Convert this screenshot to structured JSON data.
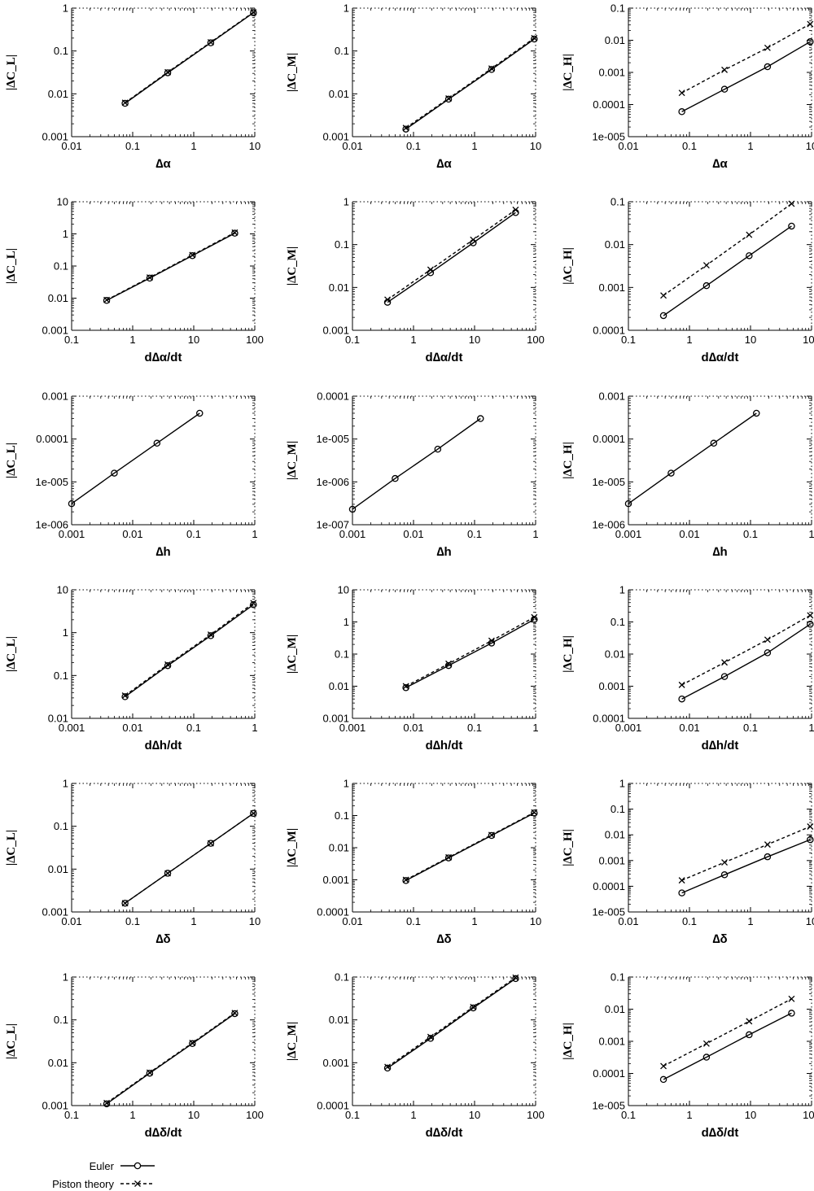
{
  "legend": {
    "euler_label": "Euler",
    "piston_label": "Piston theory"
  },
  "chart_data": [
    {
      "type": "line",
      "row": 1,
      "col": 1,
      "xlabel": "∆α",
      "ylabel": "|∆C_L|",
      "xscale": "log",
      "yscale": "log",
      "xlim": [
        0.01,
        10
      ],
      "ylim": [
        0.001,
        1
      ],
      "xticks": [
        "0.01",
        "0.1",
        "1",
        "10"
      ],
      "yticks": [
        "0.001",
        "0.01",
        "0.1",
        "1"
      ],
      "series": [
        {
          "name": "Euler",
          "x": [
            0.075,
            0.375,
            1.9,
            9.5
          ],
          "y": [
            0.006,
            0.031,
            0.155,
            0.78
          ]
        },
        {
          "name": "Piston theory",
          "x": [
            0.075,
            0.375,
            1.9,
            9.5
          ],
          "y": [
            0.0062,
            0.032,
            0.16,
            0.8
          ]
        }
      ]
    },
    {
      "type": "line",
      "row": 1,
      "col": 2,
      "xlabel": "∆α",
      "ylabel": "|∆C_M|",
      "xscale": "log",
      "yscale": "log",
      "xlim": [
        0.01,
        10
      ],
      "ylim": [
        0.001,
        1
      ],
      "xticks": [
        "0.01",
        "0.1",
        "1",
        "10"
      ],
      "yticks": [
        "0.001",
        "0.01",
        "0.1",
        "1"
      ],
      "series": [
        {
          "name": "Euler",
          "x": [
            0.075,
            0.375,
            1.9,
            9.5
          ],
          "y": [
            0.0015,
            0.0075,
            0.037,
            0.19
          ]
        },
        {
          "name": "Piston theory",
          "x": [
            0.075,
            0.375,
            1.9,
            9.5
          ],
          "y": [
            0.0016,
            0.0078,
            0.039,
            0.2
          ]
        }
      ]
    },
    {
      "type": "line",
      "row": 1,
      "col": 3,
      "xlabel": "∆α",
      "ylabel": "|∆C_H|",
      "xscale": "log",
      "yscale": "log",
      "xlim": [
        0.01,
        10
      ],
      "ylim": [
        1e-05,
        0.1
      ],
      "xticks": [
        "0.01",
        "0.1",
        "1",
        "10"
      ],
      "yticks": [
        "1e-005",
        "0.0001",
        "0.001",
        "0.01",
        "0.1"
      ],
      "series": [
        {
          "name": "Euler",
          "x": [
            0.075,
            0.375,
            1.9,
            9.5
          ],
          "y": [
            6e-05,
            0.0003,
            0.0015,
            0.009
          ]
        },
        {
          "name": "Piston theory",
          "x": [
            0.075,
            0.375,
            1.9,
            9.5
          ],
          "y": [
            0.00023,
            0.0012,
            0.0058,
            0.032
          ]
        }
      ]
    },
    {
      "type": "line",
      "row": 2,
      "col": 1,
      "xlabel": "d∆α/dt",
      "ylabel": "|∆C_L|",
      "xscale": "log",
      "yscale": "log",
      "xlim": [
        0.1,
        100
      ],
      "ylim": [
        0.001,
        10
      ],
      "xticks": [
        "0.1",
        "1",
        "10",
        "100"
      ],
      "yticks": [
        "0.001",
        "0.01",
        "0.1",
        "1",
        "10"
      ],
      "series": [
        {
          "name": "Euler",
          "x": [
            0.375,
            1.9,
            9.5,
            47
          ],
          "y": [
            0.0085,
            0.042,
            0.21,
            1.05
          ]
        },
        {
          "name": "Piston theory",
          "x": [
            0.375,
            1.9,
            9.5,
            47
          ],
          "y": [
            0.0088,
            0.044,
            0.22,
            1.1
          ]
        }
      ]
    },
    {
      "type": "line",
      "row": 2,
      "col": 2,
      "xlabel": "d∆α/dt",
      "ylabel": "|∆C_M|",
      "xscale": "log",
      "yscale": "log",
      "xlim": [
        0.1,
        100
      ],
      "ylim": [
        0.001,
        1
      ],
      "xticks": [
        "0.1",
        "1",
        "10",
        "100"
      ],
      "yticks": [
        "0.001",
        "0.01",
        "0.1",
        "1"
      ],
      "series": [
        {
          "name": "Euler",
          "x": [
            0.375,
            1.9,
            9.5,
            47
          ],
          "y": [
            0.0045,
            0.022,
            0.11,
            0.56
          ]
        },
        {
          "name": "Piston theory",
          "x": [
            0.375,
            1.9,
            9.5,
            47
          ],
          "y": [
            0.0052,
            0.026,
            0.13,
            0.65
          ]
        }
      ]
    },
    {
      "type": "line",
      "row": 2,
      "col": 3,
      "xlabel": "d∆α/dt",
      "ylabel": "|∆C_H|",
      "xscale": "log",
      "yscale": "log",
      "xlim": [
        0.1,
        100
      ],
      "ylim": [
        0.0001,
        0.1
      ],
      "xticks": [
        "0.1",
        "1",
        "10",
        "100"
      ],
      "yticks": [
        "0.0001",
        "0.001",
        "0.01",
        "0.1"
      ],
      "series": [
        {
          "name": "Euler",
          "x": [
            0.375,
            1.9,
            9.5,
            47
          ],
          "y": [
            0.00022,
            0.0011,
            0.0055,
            0.027
          ]
        },
        {
          "name": "Piston theory",
          "x": [
            0.375,
            1.9,
            9.5,
            47
          ],
          "y": [
            0.00065,
            0.0033,
            0.017,
            0.09
          ]
        }
      ]
    },
    {
      "type": "line",
      "row": 3,
      "col": 1,
      "xlabel": "∆h",
      "ylabel": "|∆C_L|",
      "xscale": "log",
      "yscale": "log",
      "xlim": [
        0.001,
        1
      ],
      "ylim": [
        1e-06,
        0.001
      ],
      "xticks": [
        "0.001",
        "0.01",
        "0.1",
        "1"
      ],
      "yticks": [
        "1e-006",
        "1e-005",
        "0.0001",
        "0.001"
      ],
      "series": [
        {
          "name": "Euler",
          "x": [
            0.001,
            0.005,
            0.025,
            0.125
          ],
          "y": [
            3.1e-06,
            1.6e-05,
            8e-05,
            0.0004
          ]
        }
      ]
    },
    {
      "type": "line",
      "row": 3,
      "col": 2,
      "xlabel": "∆h",
      "ylabel": "|∆C_M|",
      "xscale": "log",
      "yscale": "log",
      "xlim": [
        0.001,
        1
      ],
      "ylim": [
        1e-07,
        0.0001
      ],
      "xticks": [
        "0.001",
        "0.01",
        "0.1",
        "1"
      ],
      "yticks": [
        "1e-007",
        "1e-006",
        "1e-005",
        "0.0001"
      ],
      "series": [
        {
          "name": "Euler",
          "x": [
            0.001,
            0.005,
            0.025,
            0.125
          ],
          "y": [
            2.3e-07,
            1.2e-06,
            5.8e-06,
            3e-05
          ]
        }
      ]
    },
    {
      "type": "line",
      "row": 3,
      "col": 3,
      "xlabel": "∆h",
      "ylabel": "|∆C_H|",
      "xscale": "log",
      "yscale": "log",
      "xlim": [
        0.001,
        1
      ],
      "ylim": [
        1e-06,
        0.001
      ],
      "xticks": [
        "0.001",
        "0.01",
        "0.1",
        "1"
      ],
      "yticks": [
        "1e-006",
        "1e-005",
        "0.0001",
        "0.001"
      ],
      "series": [
        {
          "name": "Euler",
          "x": [
            0.001,
            0.005,
            0.025,
            0.125
          ],
          "y": [
            3.1e-06,
            1.6e-05,
            8e-05,
            0.0004
          ]
        }
      ]
    },
    {
      "type": "line",
      "row": 4,
      "col": 1,
      "xlabel": "d∆h/dt",
      "ylabel": "|∆C_L|",
      "xscale": "log",
      "yscale": "log",
      "xlim": [
        0.001,
        1
      ],
      "ylim": [
        0.01,
        10
      ],
      "xticks": [
        "0.001",
        "0.01",
        "0.1",
        "1"
      ],
      "yticks": [
        "0.01",
        "0.1",
        "1",
        "10"
      ],
      "series": [
        {
          "name": "Euler",
          "x": [
            0.0075,
            0.0375,
            0.19,
            0.95
          ],
          "y": [
            0.032,
            0.17,
            0.85,
            4.5
          ]
        },
        {
          "name": "Piston theory",
          "x": [
            0.0075,
            0.0375,
            0.19,
            0.95
          ],
          "y": [
            0.034,
            0.18,
            0.9,
            4.9
          ]
        }
      ]
    },
    {
      "type": "line",
      "row": 4,
      "col": 2,
      "xlabel": "d∆h/dt",
      "ylabel": "|∆C_M|",
      "xscale": "log",
      "yscale": "log",
      "xlim": [
        0.001,
        1
      ],
      "ylim": [
        0.001,
        10
      ],
      "xticks": [
        "0.001",
        "0.01",
        "0.1",
        "1"
      ],
      "yticks": [
        "0.001",
        "0.01",
        "0.1",
        "1",
        "10"
      ],
      "series": [
        {
          "name": "Euler",
          "x": [
            0.0075,
            0.0375,
            0.19,
            0.95
          ],
          "y": [
            0.009,
            0.044,
            0.22,
            1.2
          ]
        },
        {
          "name": "Piston theory",
          "x": [
            0.0075,
            0.0375,
            0.19,
            0.95
          ],
          "y": [
            0.01,
            0.05,
            0.26,
            1.4
          ]
        }
      ]
    },
    {
      "type": "line",
      "row": 4,
      "col": 3,
      "xlabel": "d∆h/dt",
      "ylabel": "|∆C_H|",
      "xscale": "log",
      "yscale": "log",
      "xlim": [
        0.001,
        1
      ],
      "ylim": [
        0.0001,
        1
      ],
      "xticks": [
        "0.001",
        "0.01",
        "0.1",
        "1"
      ],
      "yticks": [
        "0.0001",
        "0.001",
        "0.01",
        "0.1",
        "1"
      ],
      "series": [
        {
          "name": "Euler",
          "x": [
            0.0075,
            0.0375,
            0.19,
            0.95
          ],
          "y": [
            0.0004,
            0.002,
            0.011,
            0.085
          ]
        },
        {
          "name": "Piston theory",
          "x": [
            0.0075,
            0.0375,
            0.19,
            0.95
          ],
          "y": [
            0.0011,
            0.0055,
            0.028,
            0.16
          ]
        }
      ]
    },
    {
      "type": "line",
      "row": 5,
      "col": 1,
      "xlabel": "∆δ",
      "ylabel": "|∆C_L|",
      "xscale": "log",
      "yscale": "log",
      "xlim": [
        0.01,
        10
      ],
      "ylim": [
        0.001,
        1
      ],
      "xticks": [
        "0.01",
        "0.1",
        "1",
        "10"
      ],
      "yticks": [
        "0.001",
        "0.01",
        "0.1",
        "1"
      ],
      "series": [
        {
          "name": "Euler",
          "x": [
            0.075,
            0.375,
            1.9,
            9.5
          ],
          "y": [
            0.0016,
            0.008,
            0.04,
            0.2
          ]
        },
        {
          "name": "Piston theory",
          "x": [
            0.075,
            0.375,
            1.9,
            9.5
          ],
          "y": [
            0.0016,
            0.008,
            0.04,
            0.2
          ]
        }
      ]
    },
    {
      "type": "line",
      "row": 5,
      "col": 2,
      "xlabel": "∆δ",
      "ylabel": "|∆C_M|",
      "xscale": "log",
      "yscale": "log",
      "xlim": [
        0.01,
        10
      ],
      "ylim": [
        0.0001,
        1
      ],
      "xticks": [
        "0.01",
        "0.1",
        "1",
        "10"
      ],
      "yticks": [
        "0.0001",
        "0.001",
        "0.01",
        "0.1",
        "1"
      ],
      "series": [
        {
          "name": "Euler",
          "x": [
            0.075,
            0.375,
            1.9,
            9.5
          ],
          "y": [
            0.00095,
            0.0048,
            0.024,
            0.12
          ]
        },
        {
          "name": "Piston theory",
          "x": [
            0.075,
            0.375,
            1.9,
            9.5
          ],
          "y": [
            0.001,
            0.005,
            0.025,
            0.125
          ]
        }
      ]
    },
    {
      "type": "line",
      "row": 5,
      "col": 3,
      "xlabel": "∆δ",
      "ylabel": "|∆C_H|",
      "xscale": "log",
      "yscale": "log",
      "xlim": [
        0.01,
        10
      ],
      "ylim": [
        1e-05,
        1
      ],
      "xticks": [
        "0.01",
        "0.1",
        "1",
        "10"
      ],
      "yticks": [
        "1e-005",
        "0.0001",
        "0.001",
        "0.01",
        "0.1",
        "1"
      ],
      "series": [
        {
          "name": "Euler",
          "x": [
            0.075,
            0.375,
            1.9,
            9.5
          ],
          "y": [
            5.5e-05,
            0.00028,
            0.0014,
            0.0065
          ]
        },
        {
          "name": "Piston theory",
          "x": [
            0.075,
            0.375,
            1.9,
            9.5
          ],
          "y": [
            0.00017,
            0.00085,
            0.0042,
            0.021
          ]
        }
      ]
    },
    {
      "type": "line",
      "row": 6,
      "col": 1,
      "xlabel": "d∆δ/dt",
      "ylabel": "|∆C_L|",
      "xscale": "log",
      "yscale": "log",
      "xlim": [
        0.1,
        100
      ],
      "ylim": [
        0.001,
        1
      ],
      "xticks": [
        "0.1",
        "1",
        "10",
        "100"
      ],
      "yticks": [
        "0.001",
        "0.01",
        "0.1",
        "1"
      ],
      "series": [
        {
          "name": "Euler",
          "x": [
            0.375,
            1.9,
            9.5,
            47
          ],
          "y": [
            0.0011,
            0.0057,
            0.028,
            0.14
          ]
        },
        {
          "name": "Piston theory",
          "x": [
            0.375,
            1.9,
            9.5,
            47
          ],
          "y": [
            0.00115,
            0.0059,
            0.029,
            0.145
          ]
        }
      ]
    },
    {
      "type": "line",
      "row": 6,
      "col": 2,
      "xlabel": "d∆δ/dt",
      "ylabel": "|∆C_M|",
      "xscale": "log",
      "yscale": "log",
      "xlim": [
        0.1,
        100
      ],
      "ylim": [
        0.0001,
        0.1
      ],
      "xticks": [
        "0.1",
        "1",
        "10",
        "100"
      ],
      "yticks": [
        "0.0001",
        "0.001",
        "0.01",
        "0.1"
      ],
      "series": [
        {
          "name": "Euler",
          "x": [
            0.375,
            1.9,
            9.5,
            47
          ],
          "y": [
            0.00075,
            0.0037,
            0.019,
            0.092
          ]
        },
        {
          "name": "Piston theory",
          "x": [
            0.375,
            1.9,
            9.5,
            47
          ],
          "y": [
            0.0008,
            0.004,
            0.02,
            0.097
          ]
        }
      ]
    },
    {
      "type": "line",
      "row": 6,
      "col": 3,
      "xlabel": "d∆δ/dt",
      "ylabel": "|∆C_H|",
      "xscale": "log",
      "yscale": "log",
      "xlim": [
        0.1,
        100
      ],
      "ylim": [
        1e-05,
        0.1
      ],
      "xticks": [
        "0.1",
        "1",
        "10",
        "100"
      ],
      "yticks": [
        "1e-005",
        "0.0001",
        "0.001",
        "0.01",
        "0.1"
      ],
      "series": [
        {
          "name": "Euler",
          "x": [
            0.375,
            1.9,
            9.5,
            47
          ],
          "y": [
            6.5e-05,
            0.00032,
            0.0016,
            0.0075
          ]
        },
        {
          "name": "Piston theory",
          "x": [
            0.375,
            1.9,
            9.5,
            47
          ],
          "y": [
            0.00017,
            0.00085,
            0.0042,
            0.021
          ]
        }
      ]
    }
  ]
}
